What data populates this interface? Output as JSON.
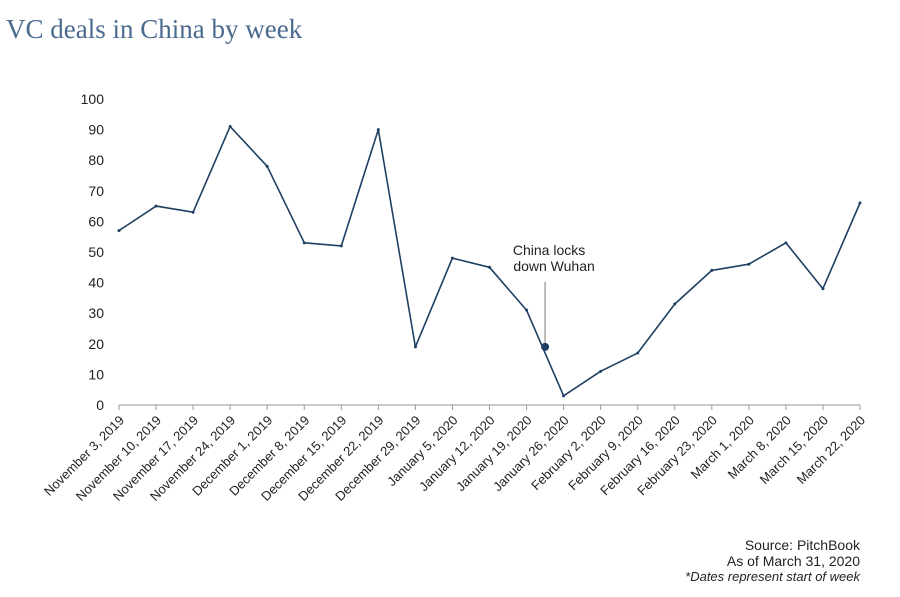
{
  "chart_data": {
    "type": "line",
    "title": "VC deals in China by week",
    "x": [
      "November 3, 2019",
      "November 10, 2019",
      "November 17, 2019",
      "November 24, 2019",
      "December 1, 2019",
      "December 8, 2019",
      "December 15, 2019",
      "December 22, 2019",
      "December 29, 2019",
      "January 5, 2020",
      "January 12, 2020",
      "January 19, 2020",
      "January 26, 2020",
      "February 2, 2020",
      "February 9, 2020",
      "February 16, 2020",
      "February 23, 2020",
      "March 1, 2020",
      "March 8, 2020",
      "March 15, 2020",
      "March 22, 2020"
    ],
    "series": [
      {
        "values": [
          57,
          65,
          63,
          91,
          78,
          53,
          52,
          90,
          19,
          48,
          45,
          31,
          3,
          11,
          17,
          33,
          44,
          46,
          53,
          38,
          66
        ]
      }
    ],
    "ylim": [
      0,
      100
    ],
    "yticks": [
      0,
      10,
      20,
      30,
      40,
      50,
      60,
      70,
      80,
      90,
      100
    ],
    "grid": false,
    "annotation": {
      "text_line1": "China locks",
      "text_line2": "down Wuhan",
      "marker_x_between": [
        "January 19, 2020",
        "January 26, 2020"
      ],
      "marker_y": 19
    },
    "line_color": "#1f3f63"
  },
  "footer": {
    "source": "Source: PitchBook",
    "as_of": "As of March 31, 2020",
    "note": "*Dates represent start of week"
  }
}
